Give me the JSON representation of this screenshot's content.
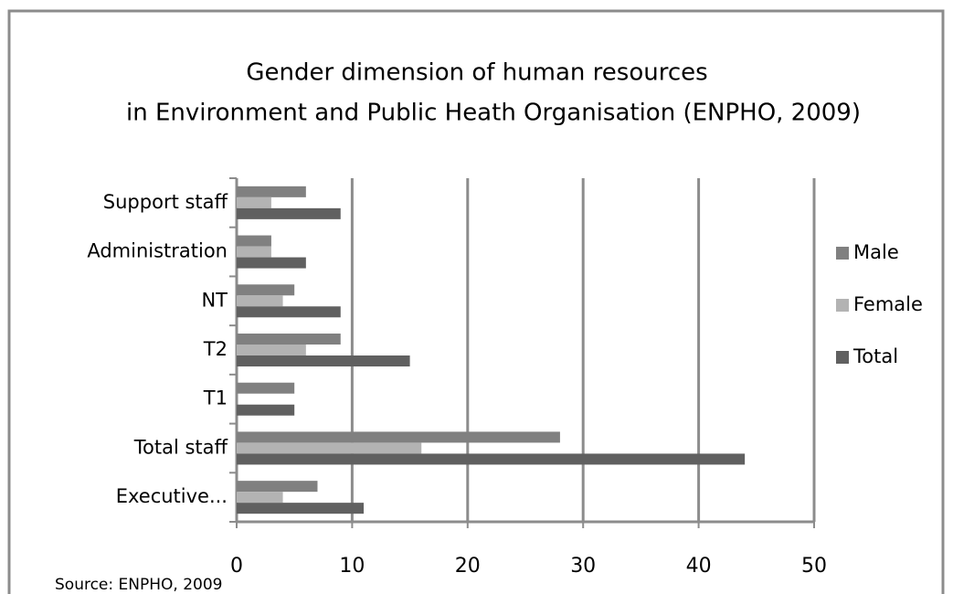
{
  "chart_data": {
    "type": "bar",
    "orientation": "horizontal",
    "title": [
      "Gender dimension of human resources",
      "in Environment and Public Heath Organisation (ENPHO, 2009)"
    ],
    "source": "Source: ENPHO, 2009",
    "categories": [
      "Executive...",
      "Total staff",
      "T1",
      "T2",
      "NT",
      "Administration",
      "Support staff"
    ],
    "series": [
      {
        "name": "Male",
        "color": "#808080",
        "values": [
          7,
          28,
          5,
          9,
          5,
          3,
          6
        ]
      },
      {
        "name": "Female",
        "color": "#b3b3b3",
        "values": [
          4,
          16,
          0,
          6,
          4,
          3,
          3
        ]
      },
      {
        "name": "Total",
        "color": "#606060",
        "values": [
          11,
          44,
          5,
          15,
          9,
          6,
          9
        ]
      }
    ],
    "xlim": [
      0,
      50
    ],
    "xticks": [
      0,
      10,
      20,
      30,
      40,
      50
    ],
    "grid": true,
    "legend": "right"
  }
}
